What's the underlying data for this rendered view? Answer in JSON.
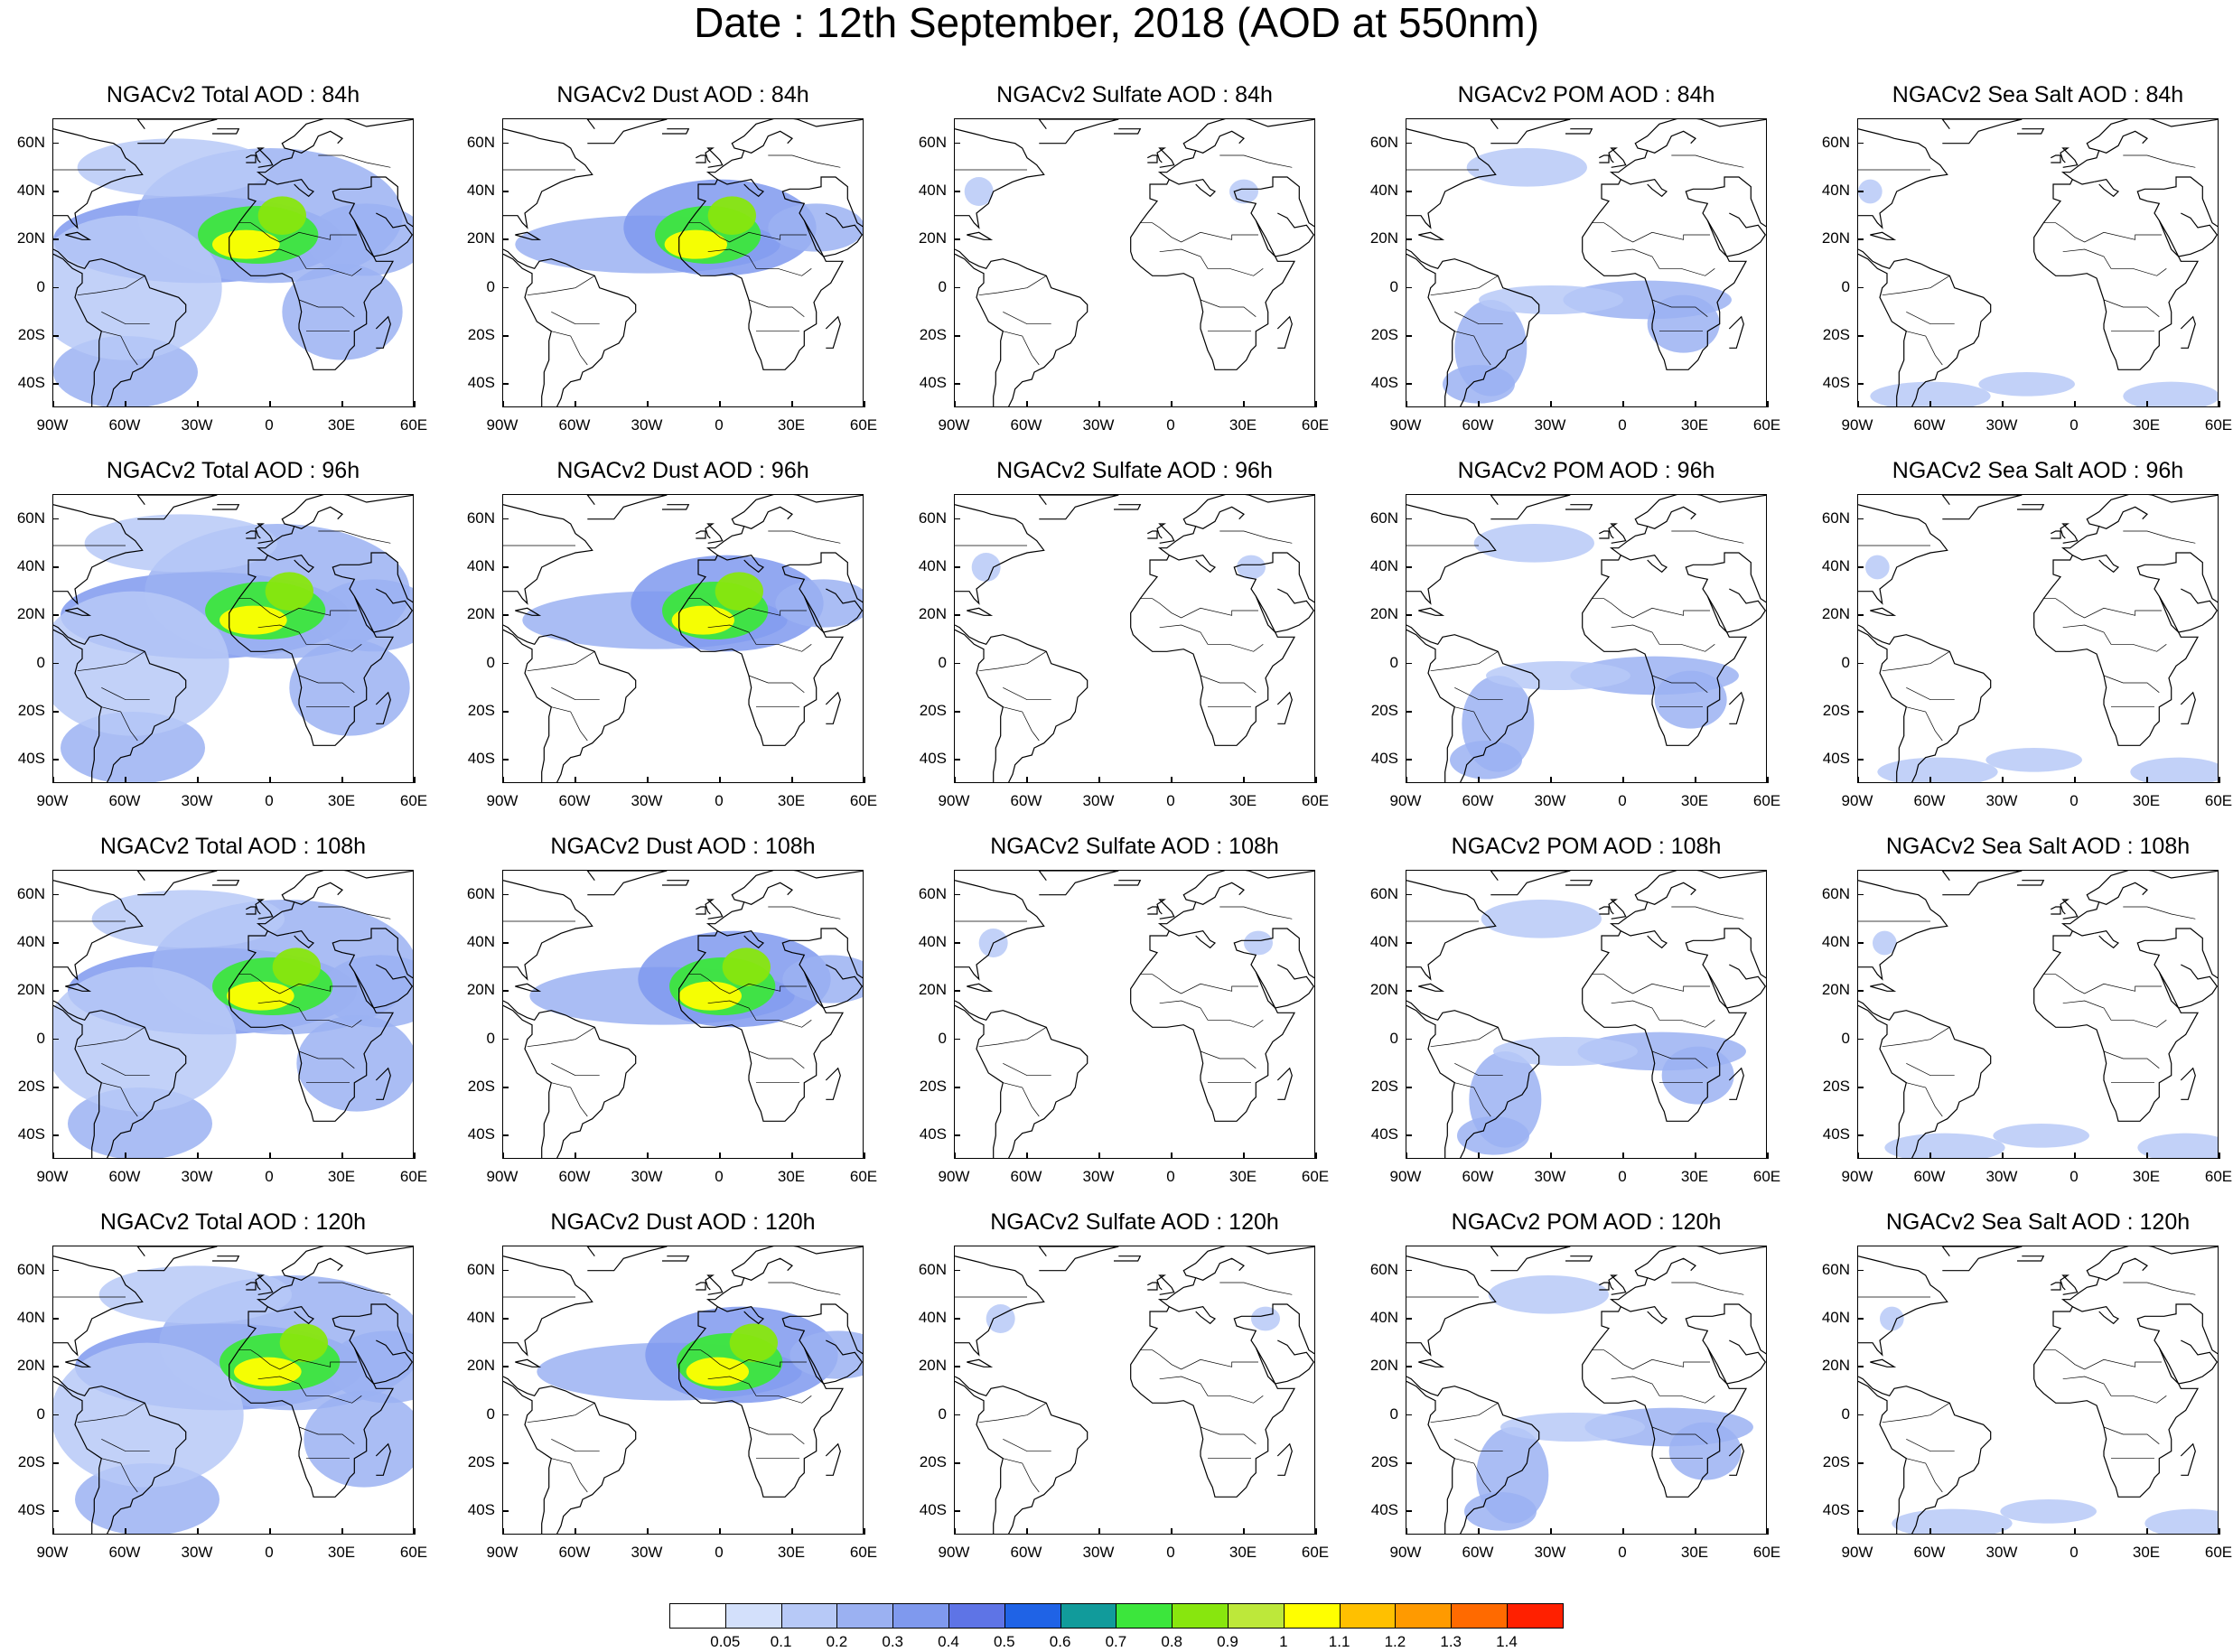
{
  "title": "Date : 12th September, 2018 (AOD at 550nm)",
  "panels": [
    [
      "NGACv2 Total AOD : 84h",
      "NGACv2 Dust AOD : 84h",
      "NGACv2 Sulfate AOD : 84h",
      "NGACv2 POM AOD : 84h",
      "NGACv2 Sea Salt AOD : 84h"
    ],
    [
      "NGACv2 Total AOD : 96h",
      "NGACv2 Dust AOD : 96h",
      "NGACv2 Sulfate AOD : 96h",
      "NGACv2 POM AOD : 96h",
      "NGACv2 Sea Salt AOD : 96h"
    ],
    [
      "NGACv2 Total AOD : 108h",
      "NGACv2 Dust AOD : 108h",
      "NGACv2 Sulfate AOD : 108h",
      "NGACv2 POM AOD : 108h",
      "NGACv2 Sea Salt AOD : 108h"
    ],
    [
      "NGACv2 Total AOD : 120h",
      "NGACv2 Dust AOD : 120h",
      "NGACv2 Sulfate AOD : 120h",
      "NGACv2 POM AOD : 120h",
      "NGACv2 Sea Salt  AOD : 120h"
    ]
  ],
  "map_extent": {
    "lon": [
      -90,
      60
    ],
    "lat": [
      -50,
      70
    ]
  },
  "lat_ticks": [
    {
      "value": 60,
      "label": "60N"
    },
    {
      "value": 40,
      "label": "40N"
    },
    {
      "value": 20,
      "label": "20N"
    },
    {
      "value": 0,
      "label": "0"
    },
    {
      "value": -20,
      "label": "20S"
    },
    {
      "value": -40,
      "label": "40S"
    }
  ],
  "lon_ticks": [
    {
      "value": -90,
      "label": "90W"
    },
    {
      "value": -60,
      "label": "60W"
    },
    {
      "value": -30,
      "label": "30W"
    },
    {
      "value": 0,
      "label": "0"
    },
    {
      "value": 30,
      "label": "30E"
    },
    {
      "value": 60,
      "label": "60E"
    }
  ],
  "colorbar": {
    "labels": [
      "0.05",
      "0.1",
      "0.2",
      "0.3",
      "0.4",
      "0.5",
      "0.6",
      "0.7",
      "0.8",
      "0.9",
      "1",
      "1.1",
      "1.2",
      "1.3",
      "1.4"
    ],
    "colors": [
      "#ffffff",
      "#d3e0fb",
      "#b7c9f7",
      "#9bb1f2",
      "#7f99ee",
      "#5e74e6",
      "#1f63e6",
      "#119b9b",
      "#3ce63c",
      "#88e60e",
      "#bde83a",
      "#ffff00",
      "#ffc000",
      "#ff9a00",
      "#ff6a00",
      "#ff2000"
    ]
  },
  "colors": {
    "land_outline": "#000000",
    "background": "#ffffff"
  }
}
